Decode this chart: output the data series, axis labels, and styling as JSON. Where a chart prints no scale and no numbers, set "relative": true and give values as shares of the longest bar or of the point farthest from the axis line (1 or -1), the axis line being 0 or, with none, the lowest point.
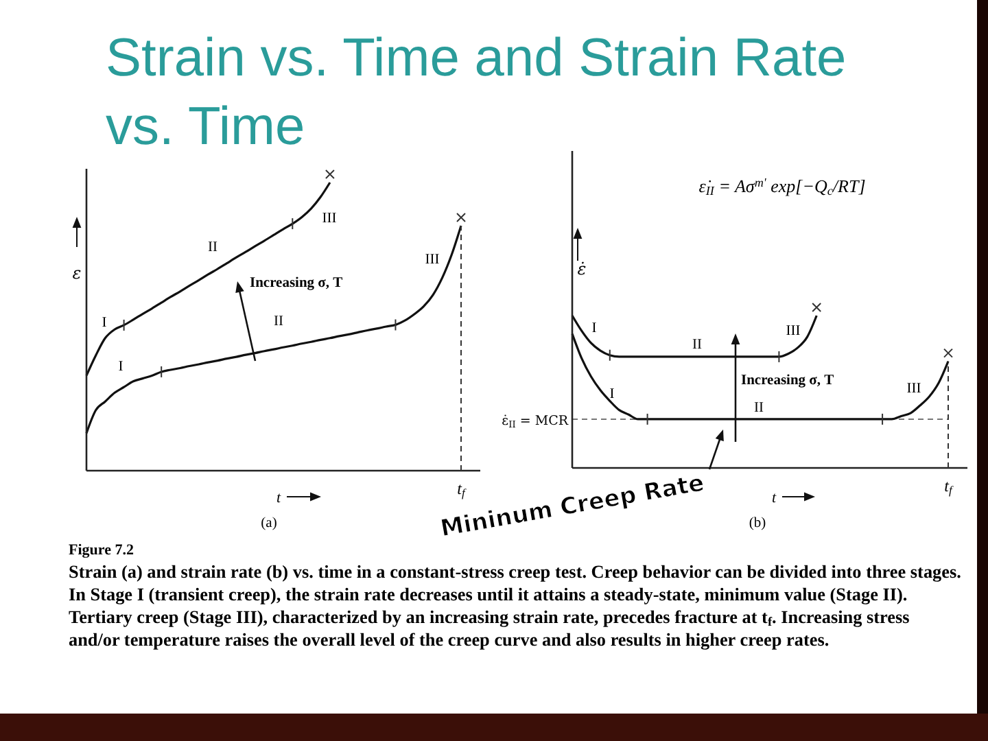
{
  "chart_data": [
    {
      "type": "line",
      "title": "Strain vs. Time and Strain Rate vs. Time",
      "xlabel": "t",
      "ylabel": "ε",
      "relative": true,
      "categories": [
        null,
        null,
        null,
        null,
        null,
        null,
        null,
        null,
        null,
        null,
        null,
        null,
        null,
        null,
        null,
        null,
        null,
        null,
        null,
        null,
        null,
        null,
        null,
        null,
        null,
        null,
        null,
        null,
        null,
        null,
        null,
        null,
        null,
        null,
        null,
        null,
        null,
        null,
        null,
        null,
        null
      ],
      "series": [
        {
          "color": "#111111",
          "values": [
            0.33,
            0.4,
            0.46,
            0.49,
            0.505,
            0.524,
            0.544,
            0.563,
            0.583,
            0.603,
            0.622,
            0.642,
            0.661,
            0.681,
            0.7,
            0.72,
            0.74,
            0.759,
            0.779,
            0.798,
            0.818,
            0.838,
            0.857,
            0.88,
            0.91,
            0.95,
            1.0,
            null,
            null,
            null,
            null,
            null,
            null,
            null,
            null,
            null,
            null,
            null,
            null,
            null,
            null
          ]
        },
        {
          "color": "#111111",
          "values": [
            0.13,
            0.21,
            0.24,
            0.27,
            0.29,
            0.31,
            0.32,
            0.33,
            0.343,
            0.35,
            0.356,
            0.363,
            0.369,
            0.376,
            0.382,
            0.389,
            0.395,
            0.402,
            0.408,
            0.415,
            0.421,
            0.428,
            0.434,
            0.441,
            0.447,
            0.454,
            0.46,
            0.467,
            0.473,
            0.48,
            0.487,
            0.493,
            0.5,
            0.506,
            0.521,
            0.543,
            0.57,
            0.61,
            0.67,
            0.75,
            0.85
          ]
        }
      ],
      "annotations": [
        "I",
        "II",
        "III",
        "I",
        "II",
        "III",
        "Increasing σ, T",
        "(a)",
        "Figure 7.2",
        "Strain (a) and strain rate (b) vs.  time in a constant-stress creep test.  Creep behavior can be divided into three stages.  In Stage I (transient creep), the strain rate decreases until it attains a steady-state, minimum value (Stage II).  Tertiary creep (Stage III), characterized by an increasing strain rate, precedes fracture at t$_{f}$.  Increasing stress and/or temperature raises the overall level of the creep curve and also results in higher creep rates.",
        "t$_{f}$"
      ]
    },
    {
      "type": "line",
      "xlabel": "t",
      "ylabel": "ε̇",
      "relative": true,
      "categories": [
        null,
        null,
        null,
        null,
        null,
        null,
        null,
        null,
        null,
        null,
        null,
        null,
        null,
        null,
        null,
        null,
        null,
        null,
        null,
        null,
        null,
        null,
        null,
        null,
        null,
        null,
        null,
        null,
        null,
        null,
        null,
        null,
        null,
        null,
        null,
        null,
        null,
        null,
        null,
        null,
        null
      ],
      "series": [
        {
          "color": "#111111",
          "values": [
            1.0,
            0.9,
            0.82,
            0.77,
            0.74,
            0.73,
            0.73,
            0.73,
            0.73,
            0.73,
            0.73,
            0.73,
            0.73,
            0.73,
            0.73,
            0.73,
            0.73,
            0.73,
            0.73,
            0.73,
            0.73,
            0.73,
            0.73,
            0.75,
            0.79,
            0.86,
            1.0,
            null,
            null,
            null,
            null,
            null,
            null,
            null,
            null,
            null,
            null,
            null,
            null,
            null,
            null
          ]
        },
        {
          "color": "#111111",
          "values": [
            0.88,
            0.72,
            0.6,
            0.51,
            0.44,
            0.38,
            0.35,
            0.32,
            0.32,
            0.32,
            0.32,
            0.32,
            0.32,
            0.32,
            0.32,
            0.32,
            0.32,
            0.32,
            0.32,
            0.32,
            0.32,
            0.32,
            0.32,
            0.32,
            0.32,
            0.32,
            0.32,
            0.32,
            0.32,
            0.32,
            0.32,
            0.32,
            0.32,
            0.32,
            0.32,
            0.34,
            0.36,
            0.41,
            0.47,
            0.56,
            0.7
          ]
        }
      ],
      "ref_lines": [
        {
          "axis": "y",
          "value": 0.32,
          "label": "ε̇$_{II}$ = MCR",
          "line_style": "dashed"
        }
      ],
      "annotations": [
        "I",
        "II",
        "III",
        "I",
        "II",
        "III",
        "Increasing σ, T",
        "(b)",
        "ε̇$_{II}$ = Aσ$^{m'}$ exp[−Q$_{c}$/RT]",
        "Mininum Creep Rate",
        "t$_{f}$"
      ]
    }
  ]
}
